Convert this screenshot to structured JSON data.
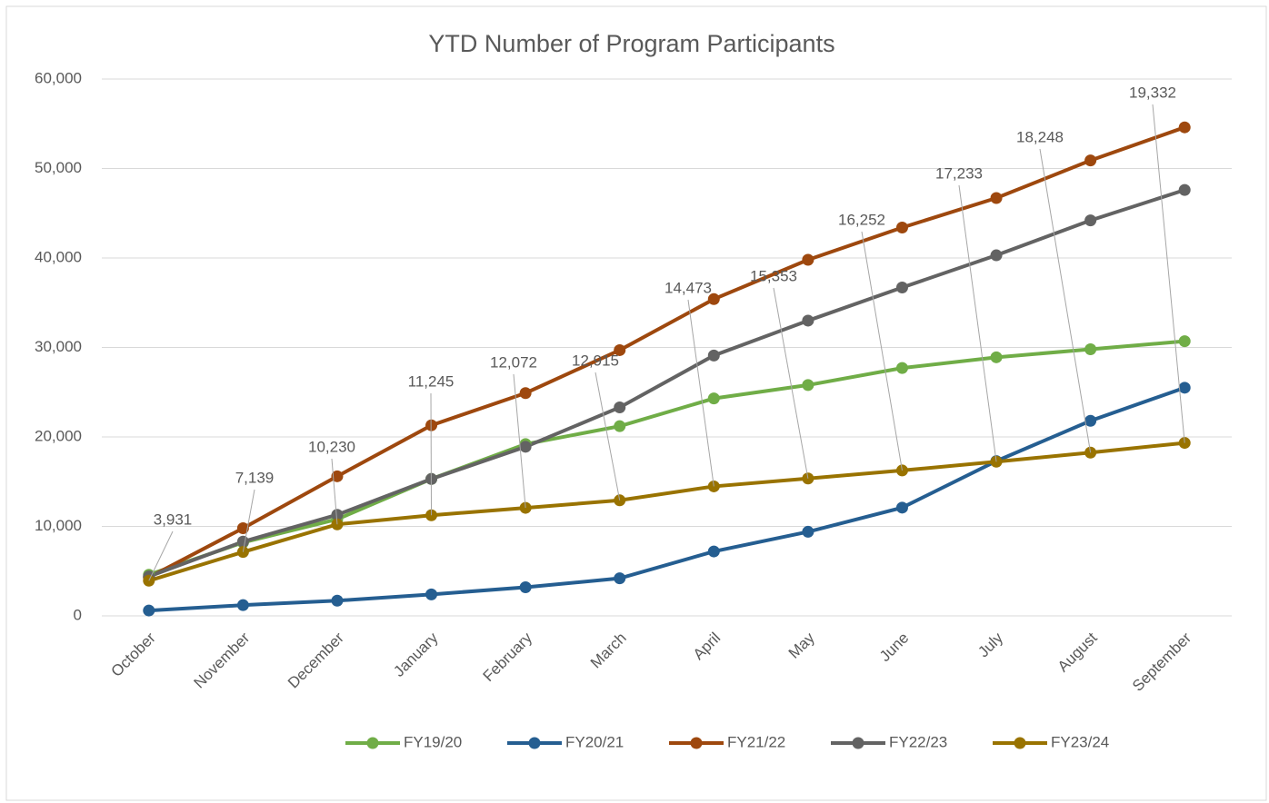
{
  "chart_data": {
    "type": "line",
    "title": "YTD Number of Program Participants",
    "categories": [
      "October",
      "November",
      "December",
      "January",
      "February",
      "March",
      "April",
      "May",
      "June",
      "July",
      "August",
      "September"
    ],
    "ylim": [
      0,
      60000
    ],
    "yticks": [
      0,
      {
        "value": 10000,
        "label": "10,000"
      },
      {
        "value": 20000,
        "label": "20,000"
      },
      {
        "value": 30000,
        "label": "30,000"
      },
      {
        "value": 40000,
        "label": "40,000"
      },
      {
        "value": 50000,
        "label": "50,000"
      },
      {
        "value": 60000,
        "label": "60,000"
      }
    ],
    "grid": true,
    "legend": "bottom",
    "series": [
      {
        "name": "FY19/20",
        "color": "#70ad47",
        "values": [
          4600,
          8200,
          10800,
          15300,
          19200,
          21200,
          24300,
          25800,
          27700,
          28900,
          29800,
          30700
        ]
      },
      {
        "name": "FY20/21",
        "color": "#255e91",
        "values": [
          600,
          1200,
          1700,
          2400,
          3200,
          4200,
          7200,
          9400,
          12100,
          17300,
          21800,
          25500
        ]
      },
      {
        "name": "FY21/22",
        "color": "#9e480e",
        "values": [
          4300,
          9800,
          15600,
          21300,
          24900,
          29700,
          35400,
          39800,
          43400,
          46700,
          50900,
          54600
        ]
      },
      {
        "name": "FY22/23",
        "color": "#636363",
        "values": [
          4400,
          8300,
          11300,
          15300,
          18900,
          23300,
          29100,
          33000,
          36700,
          40300,
          44200,
          47600
        ]
      },
      {
        "name": "FY23/24",
        "color": "#997300",
        "values": [
          3931,
          7139,
          10230,
          11245,
          12072,
          12915,
          14473,
          15353,
          16252,
          17233,
          18248,
          19332
        ],
        "value_labels": [
          "3,931",
          "7,139",
          "10,230",
          "11,245",
          "12,072",
          "12,915",
          "14,473",
          "15,353",
          "16,252",
          "17,233",
          "18,248",
          "19,332"
        ]
      }
    ]
  }
}
